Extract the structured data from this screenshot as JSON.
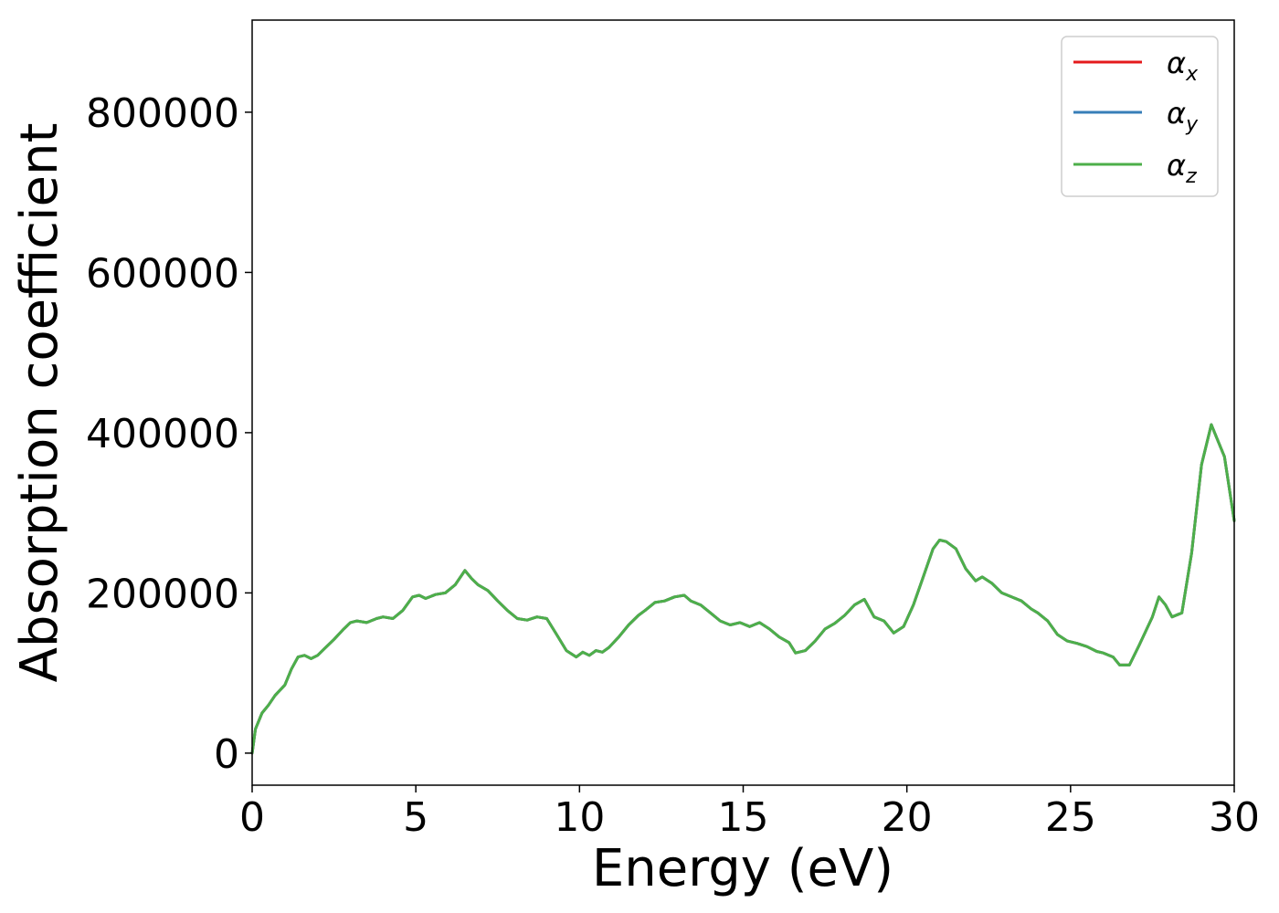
{
  "chart_data": {
    "type": "line",
    "xlabel": "Energy (eV)",
    "ylabel": "Absorption coefficient",
    "xlim": [
      0,
      30
    ],
    "ylim": [
      -40000,
      915000
    ],
    "x_ticks": [
      0,
      5,
      10,
      15,
      20,
      25,
      30
    ],
    "x_tick_labels": [
      "0",
      "5",
      "10",
      "15",
      "20",
      "25",
      "30"
    ],
    "y_ticks": [
      0,
      200000,
      400000,
      600000,
      800000
    ],
    "y_tick_labels": [
      "0",
      "200000",
      "400000",
      "600000",
      "800000"
    ],
    "grid": false,
    "legend_position": "top-right",
    "x": [
      0,
      0.1,
      0.3,
      0.5,
      0.7,
      1.0,
      1.2,
      1.4,
      1.6,
      1.8,
      2.0,
      2.2,
      2.5,
      2.8,
      3.0,
      3.2,
      3.5,
      3.8,
      4.0,
      4.3,
      4.6,
      4.9,
      5.1,
      5.3,
      5.6,
      5.9,
      6.2,
      6.5,
      6.7,
      6.9,
      7.2,
      7.5,
      7.8,
      8.1,
      8.4,
      8.7,
      9.0,
      9.3,
      9.6,
      9.9,
      10.1,
      10.3,
      10.5,
      10.7,
      10.9,
      11.2,
      11.5,
      11.8,
      12.0,
      12.3,
      12.6,
      12.9,
      13.2,
      13.4,
      13.7,
      14.0,
      14.3,
      14.6,
      14.9,
      15.2,
      15.5,
      15.8,
      16.1,
      16.4,
      16.6,
      16.9,
      17.2,
      17.5,
      17.8,
      18.1,
      18.4,
      18.7,
      19.0,
      19.3,
      19.6,
      19.9,
      20.2,
      20.5,
      20.8,
      21.0,
      21.2,
      21.5,
      21.8,
      22.1,
      22.3,
      22.6,
      22.9,
      23.2,
      23.5,
      23.8,
      24.0,
      24.3,
      24.6,
      24.9,
      25.2,
      25.5,
      25.8,
      26.0,
      26.3,
      26.5,
      26.8,
      27.1,
      27.5,
      27.7,
      27.9,
      28.1,
      28.4,
      28.7,
      29.0,
      29.3,
      29.5,
      29.7,
      30.0
    ],
    "series": [
      {
        "name": "α_x",
        "color": "#e41a1c",
        "values": [
          0,
          30000,
          50000,
          60000,
          72000,
          85000,
          105000,
          120000,
          122000,
          118000,
          122000,
          130000,
          142000,
          155000,
          163000,
          165000,
          163000,
          168000,
          170000,
          168000,
          178000,
          195000,
          197000,
          193000,
          198000,
          200000,
          210000,
          228000,
          218000,
          210000,
          203000,
          190000,
          178000,
          168000,
          166000,
          170000,
          168000,
          148000,
          128000,
          120000,
          126000,
          122000,
          128000,
          126000,
          132000,
          145000,
          160000,
          172000,
          178000,
          188000,
          190000,
          195000,
          197000,
          190000,
          185000,
          175000,
          165000,
          160000,
          163000,
          158000,
          163000,
          155000,
          145000,
          138000,
          125000,
          128000,
          140000,
          155000,
          162000,
          172000,
          185000,
          192000,
          170000,
          165000,
          150000,
          158000,
          185000,
          220000,
          255000,
          266000,
          264000,
          255000,
          230000,
          215000,
          220000,
          212000,
          200000,
          195000,
          190000,
          180000,
          175000,
          165000,
          148000,
          140000,
          137000,
          133000,
          127000,
          125000,
          120000,
          110000,
          110000,
          135000,
          170000,
          195000,
          185000,
          170000,
          175000,
          250000,
          360000,
          410000,
          390000,
          370000,
          290000
        ]
      },
      {
        "name": "α_y",
        "color": "#377eb8",
        "values": [
          0,
          30000,
          50000,
          60000,
          72000,
          85000,
          105000,
          120000,
          122000,
          118000,
          122000,
          130000,
          142000,
          155000,
          163000,
          165000,
          163000,
          168000,
          170000,
          168000,
          178000,
          195000,
          197000,
          193000,
          198000,
          200000,
          210000,
          228000,
          218000,
          210000,
          203000,
          190000,
          178000,
          168000,
          166000,
          170000,
          168000,
          148000,
          128000,
          120000,
          126000,
          122000,
          128000,
          126000,
          132000,
          145000,
          160000,
          172000,
          178000,
          188000,
          190000,
          195000,
          197000,
          190000,
          185000,
          175000,
          165000,
          160000,
          163000,
          158000,
          163000,
          155000,
          145000,
          138000,
          125000,
          128000,
          140000,
          155000,
          162000,
          172000,
          185000,
          192000,
          170000,
          165000,
          150000,
          158000,
          185000,
          220000,
          255000,
          266000,
          264000,
          255000,
          230000,
          215000,
          220000,
          212000,
          200000,
          195000,
          190000,
          180000,
          175000,
          165000,
          148000,
          140000,
          137000,
          133000,
          127000,
          125000,
          120000,
          110000,
          110000,
          135000,
          170000,
          195000,
          185000,
          170000,
          175000,
          250000,
          360000,
          410000,
          390000,
          370000,
          290000
        ]
      },
      {
        "name": "α_z",
        "color": "#4daf4a",
        "values": [
          0,
          30000,
          50000,
          60000,
          72000,
          85000,
          105000,
          120000,
          122000,
          118000,
          122000,
          130000,
          142000,
          155000,
          163000,
          165000,
          163000,
          168000,
          170000,
          168000,
          178000,
          195000,
          197000,
          193000,
          198000,
          200000,
          210000,
          228000,
          218000,
          210000,
          203000,
          190000,
          178000,
          168000,
          166000,
          170000,
          168000,
          148000,
          128000,
          120000,
          126000,
          122000,
          128000,
          126000,
          132000,
          145000,
          160000,
          172000,
          178000,
          188000,
          190000,
          195000,
          197000,
          190000,
          185000,
          175000,
          165000,
          160000,
          163000,
          158000,
          163000,
          155000,
          145000,
          138000,
          125000,
          128000,
          140000,
          155000,
          162000,
          172000,
          185000,
          192000,
          170000,
          165000,
          150000,
          158000,
          185000,
          220000,
          255000,
          266000,
          264000,
          255000,
          230000,
          215000,
          220000,
          212000,
          200000,
          195000,
          190000,
          180000,
          175000,
          165000,
          148000,
          140000,
          137000,
          133000,
          127000,
          125000,
          120000,
          110000,
          110000,
          135000,
          170000,
          195000,
          185000,
          170000,
          175000,
          250000,
          360000,
          410000,
          390000,
          370000,
          290000
        ]
      }
    ]
  },
  "legend": {
    "items": [
      {
        "symbol": "α",
        "sub": "x",
        "color": "#e41a1c"
      },
      {
        "symbol": "α",
        "sub": "y",
        "color": "#377eb8"
      },
      {
        "symbol": "α",
        "sub": "z",
        "color": "#4daf4a"
      }
    ]
  }
}
